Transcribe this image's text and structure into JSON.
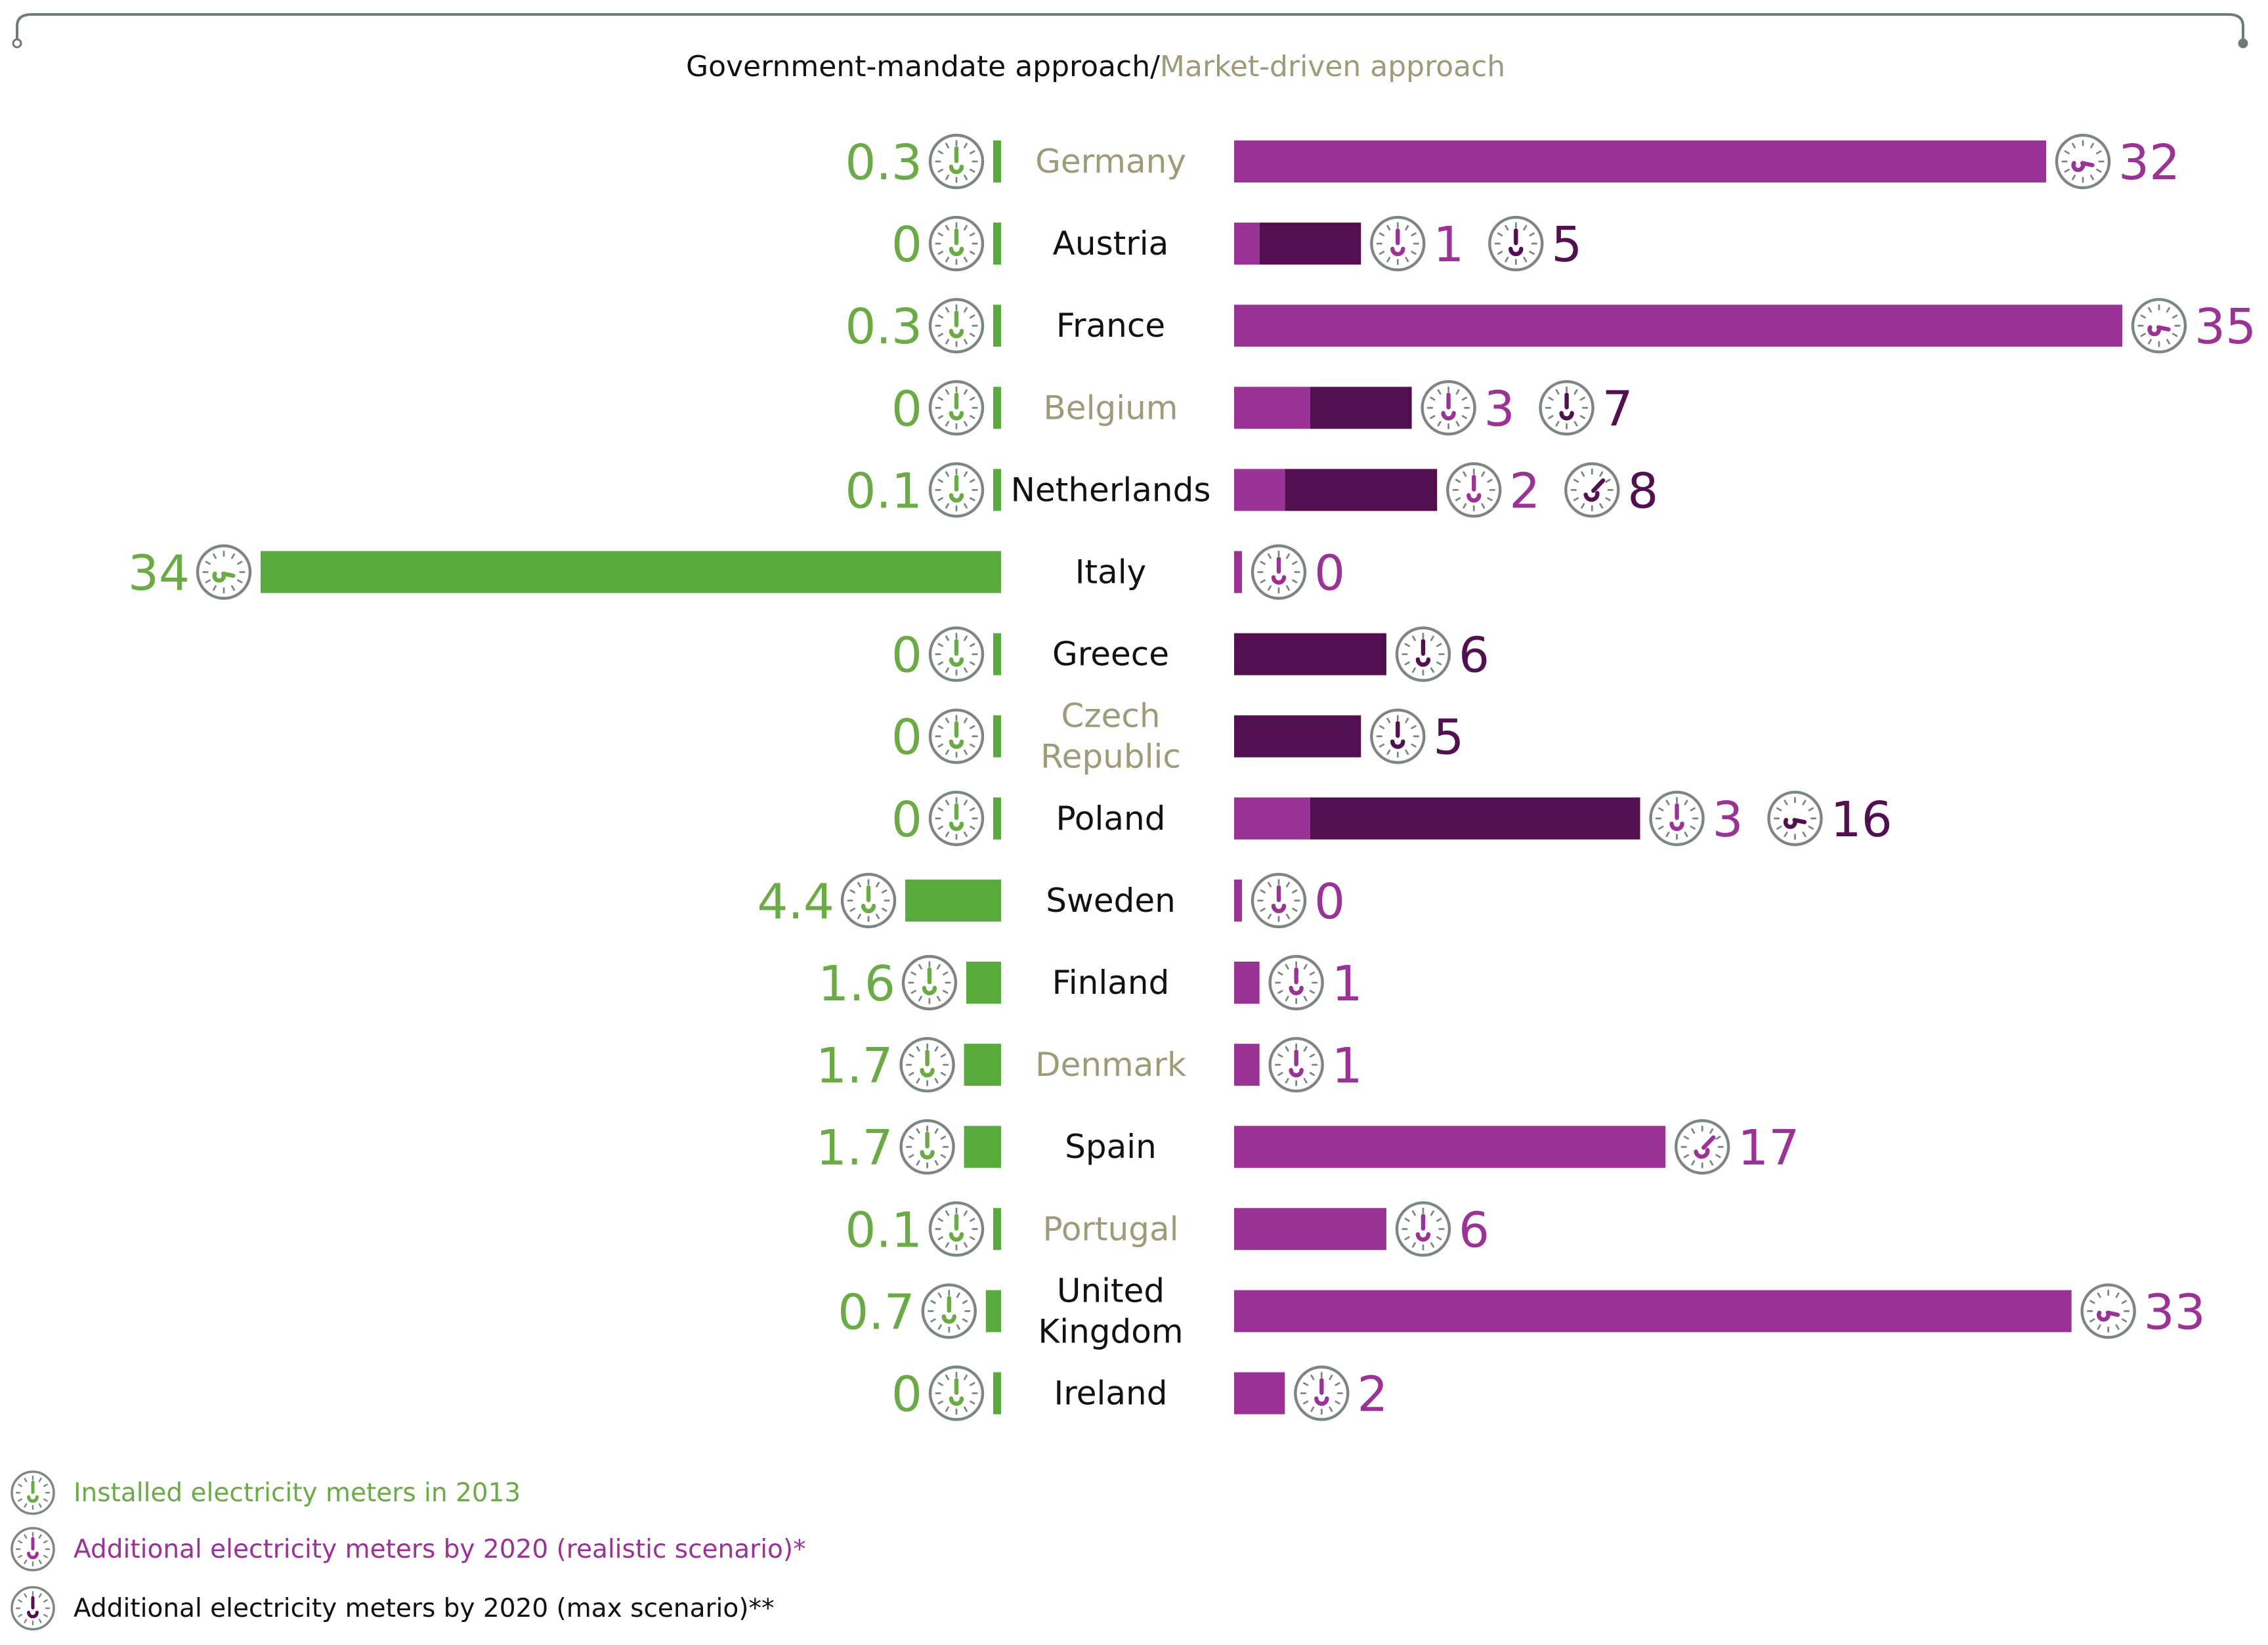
{
  "header": {
    "title_part1": "Government-mandate approach/",
    "title_part2": "Market-driven approach"
  },
  "colors": {
    "green": "#6bab45",
    "green_bar": "#5aaa3e",
    "magenta": "#9b3396",
    "dark_purple": "#531050",
    "text_dark": "#111111",
    "text_olive": "#9f9a79",
    "frame": "#6d7b7a",
    "icon_ring": "#7c8685"
  },
  "legend": {
    "installed": "Installed electricity meters in 2013",
    "realistic": "Additional electricity meters by 2020 (realistic scenario)*",
    "max": "Additional electricity meters by 2020 (max scenario)**"
  },
  "chart_data": {
    "type": "bar",
    "title": "Government-mandate approach/Market-driven approach",
    "categories": [
      "Germany",
      "Austria",
      "France",
      "Belgium",
      "Netherlands",
      "Italy",
      "Greece",
      "Czech Republic",
      "Poland",
      "Sweden",
      "Finland",
      "Denmark",
      "Spain",
      "Portugal",
      "United Kingdom",
      "Ireland"
    ],
    "category_labels": [
      [
        "Germany"
      ],
      [
        "Austria"
      ],
      [
        "France"
      ],
      [
        "Belgium"
      ],
      [
        "Netherlands"
      ],
      [
        "Italy"
      ],
      [
        "Greece"
      ],
      [
        "Czech",
        "Republic"
      ],
      [
        "Poland"
      ],
      [
        "Sweden"
      ],
      [
        "Finland"
      ],
      [
        "Denmark"
      ],
      [
        "Spain"
      ],
      [
        "Portugal"
      ],
      [
        "United",
        "Kingdom"
      ],
      [
        "Ireland"
      ]
    ],
    "label_style": [
      "market",
      "gov",
      "gov",
      "market",
      "gov",
      "gov",
      "gov",
      "market",
      "gov",
      "gov",
      "gov",
      "market",
      "gov",
      "market",
      "gov",
      "gov"
    ],
    "series": [
      {
        "name": "Installed electricity meters in 2013",
        "direction": "left",
        "values": [
          0.3,
          0,
          0.3,
          0,
          0.1,
          34,
          0,
          0,
          0,
          4.4,
          1.6,
          1.7,
          1.7,
          0.1,
          0.7,
          0
        ],
        "labels": [
          "0.3",
          "0",
          "0.3",
          "0",
          "0.1",
          "34",
          "0",
          "0",
          "0",
          "4.4",
          "1.6",
          "1.7",
          "1.7",
          "0.1",
          "0.7",
          "0"
        ]
      },
      {
        "name": "Additional electricity meters by 2020 (realistic scenario)*",
        "direction": "right",
        "values": [
          32,
          1,
          35,
          3,
          2,
          0,
          null,
          null,
          3,
          0,
          1,
          1,
          17,
          6,
          33,
          2
        ],
        "labels": [
          "32",
          "1",
          "35",
          "3",
          "2",
          "0",
          "",
          "",
          "3",
          "0",
          "1",
          "1",
          "17",
          "6",
          "33",
          "2"
        ]
      },
      {
        "name": "Additional electricity meters by 2020 (max scenario)**",
        "direction": "right",
        "values": [
          null,
          5,
          null,
          7,
          8,
          null,
          6,
          5,
          16,
          null,
          null,
          null,
          null,
          null,
          null,
          null
        ],
        "labels": [
          "",
          "5",
          "",
          "7",
          "8",
          "",
          "6",
          "5",
          "16",
          "",
          "",
          "",
          "",
          "",
          "",
          ""
        ]
      }
    ],
    "xlabel": "",
    "ylabel": "",
    "legend_position": "bottom-left"
  }
}
